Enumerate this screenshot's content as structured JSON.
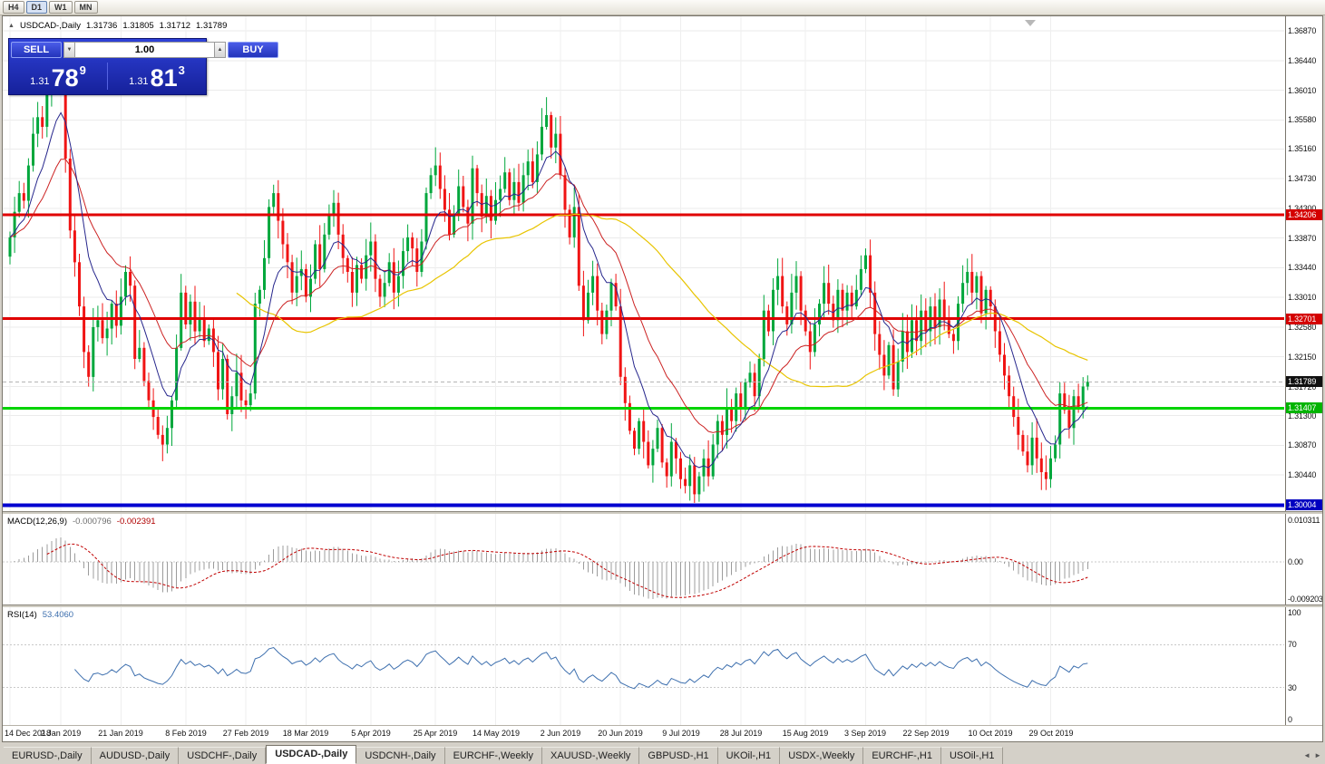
{
  "toolbar": {
    "buttons": [
      {
        "label": "H4",
        "active": false
      },
      {
        "label": "D1",
        "active": true
      },
      {
        "label": "W1",
        "active": false
      },
      {
        "label": "MN",
        "active": false
      }
    ]
  },
  "icons": {
    "title_marker": "▲",
    "volume_down": "▼",
    "volume_up": "▲",
    "tab_scroll_left": "◄",
    "tab_scroll_right": "►"
  },
  "chart": {
    "title": "USDCAD-,Daily",
    "ohlc": {
      "open": "1.31736",
      "high": "1.31805",
      "low": "1.31712",
      "close": "1.31789"
    },
    "trade_panel": {
      "sell_label": "SELL",
      "buy_label": "BUY",
      "volume": "1.00",
      "sell_price": {
        "small": "1.31",
        "big": "78",
        "sup": "9"
      },
      "buy_price": {
        "small": "1.31",
        "big": "81",
        "sup": "3"
      }
    }
  },
  "indicators": {
    "macd": {
      "name": "MACD(12,26,9)",
      "value_main": "-0.000796",
      "value_signal": "-0.002391",
      "axis": [
        "0.010311",
        "0.00",
        "-0.009203"
      ],
      "ylim": [
        -0.0105,
        0.0119
      ],
      "histogram_color": "#9c9c9c",
      "signal_color": "#c00000"
    },
    "rsi": {
      "name": "RSI(14)",
      "value": "53.4060",
      "axis": [
        "100",
        "70",
        "30",
        "0"
      ],
      "levels": [
        70,
        30
      ],
      "line_color": "#3d6fae"
    }
  },
  "chart_data": {
    "type": "candlestick",
    "symbol": "USDCAD",
    "timeframe": "Daily",
    "ylim": [
      1.29916,
      1.3708
    ],
    "colors": {
      "bull": "#00a73c",
      "bear": "#f01414"
    },
    "price_ticks": [
      "1.36870",
      "1.36440",
      "1.36010",
      "1.35580",
      "1.35160",
      "1.34730",
      "1.34300",
      "1.33870",
      "1.33440",
      "1.33010",
      "1.32580",
      "1.32150",
      "1.31720",
      "1.31300",
      "1.30870",
      "1.30440"
    ],
    "levels": [
      {
        "text": "1.34206",
        "value": 1.34206,
        "line": "#e00000",
        "bg": "#d40000",
        "thickness": 3,
        "dashed": false,
        "role": "resistance"
      },
      {
        "text": "1.32701",
        "value": 1.32701,
        "line": "#e00000",
        "bg": "#d40000",
        "thickness": 3,
        "dashed": false,
        "role": "resistance"
      },
      {
        "text": "1.31789",
        "value": 1.31789,
        "line": "#b4b4b4",
        "bg": "#101010",
        "thickness": 1,
        "dashed": true,
        "role": "current-price"
      },
      {
        "text": "1.31407",
        "value": 1.31407,
        "line": "#00d400",
        "bg": "#00b400",
        "thickness": 3,
        "dashed": false,
        "role": "support"
      },
      {
        "text": "1.30004",
        "value": 1.30004,
        "line": "#0000d0",
        "bg": "#0000c0",
        "thickness": 4,
        "dashed": false,
        "role": "support"
      }
    ],
    "moving_averages": [
      {
        "name": "fast",
        "period": 9,
        "color": "#26268c"
      },
      {
        "name": "medium",
        "period": 21,
        "color": "#cc2222"
      },
      {
        "name": "slow",
        "period": 50,
        "color": "#e8c400"
      }
    ],
    "first_open": 1.336,
    "closes": [
      1.3388,
      1.3425,
      1.3452,
      1.3441,
      1.3492,
      1.3538,
      1.3562,
      1.3548,
      1.3601,
      1.3633,
      1.3642,
      1.3616,
      1.3502,
      1.3398,
      1.3352,
      1.3288,
      1.3222,
      1.3186,
      1.3258,
      1.3268,
      1.3242,
      1.3256,
      1.3292,
      1.326,
      1.3302,
      1.3338,
      1.3318,
      1.3212,
      1.3228,
      1.318,
      1.3152,
      1.3128,
      1.3102,
      1.3088,
      1.3112,
      1.3152,
      1.3228,
      1.3308,
      1.3262,
      1.3295,
      1.3252,
      1.327,
      1.3238,
      1.3256,
      1.3222,
      1.3168,
      1.3212,
      1.3132,
      1.3158,
      1.3192,
      1.3152,
      1.3145,
      1.3162,
      1.3292,
      1.3312,
      1.3358,
      1.3432,
      1.3452,
      1.3412,
      1.3378,
      1.3352,
      1.3308,
      1.3332,
      1.3342,
      1.3302,
      1.3328,
      1.3378,
      1.3342,
      1.3392,
      1.3422,
      1.3438,
      1.3392,
      1.3358,
      1.3338,
      1.3308,
      1.3348,
      1.3328,
      1.3362,
      1.3382,
      1.3328,
      1.3302,
      1.3322,
      1.3352,
      1.3308,
      1.3332,
      1.3368,
      1.3388,
      1.3372,
      1.3338,
      1.3382,
      1.3452,
      1.3478,
      1.3492,
      1.3458,
      1.3428,
      1.3392,
      1.3422,
      1.3462,
      1.3432,
      1.3408,
      1.3488,
      1.3452,
      1.3418,
      1.3448,
      1.3412,
      1.3442,
      1.3458,
      1.3482,
      1.3442,
      1.3468,
      1.3438,
      1.3478,
      1.3498,
      1.3468,
      1.3508,
      1.3548,
      1.3565,
      1.3518,
      1.3538,
      1.3478,
      1.3428,
      1.3388,
      1.3432,
      1.3318,
      1.3268,
      1.3308,
      1.3332,
      1.3282,
      1.3248,
      1.3282,
      1.3322,
      1.3288,
      1.3186,
      1.3148,
      1.3108,
      1.3082,
      1.3122,
      1.3092,
      1.3058,
      1.3082,
      1.3112,
      1.3062,
      1.3042,
      1.3092,
      1.3068,
      1.3038,
      1.3028,
      1.3058,
      1.3016,
      1.3042,
      1.3068,
      1.3042,
      1.3088,
      1.3122,
      1.3102,
      1.3142,
      1.3122,
      1.3162,
      1.3142,
      1.3178,
      1.3192,
      1.3158,
      1.3212,
      1.3282,
      1.3252,
      1.3312,
      1.3332,
      1.3288,
      1.3262,
      1.3308,
      1.3332,
      1.3282,
      1.3252,
      1.3222,
      1.3262,
      1.3292,
      1.3322,
      1.3292,
      1.3268,
      1.3312,
      1.3282,
      1.3308,
      1.3288,
      1.3312,
      1.3342,
      1.3362,
      1.3308,
      1.3248,
      1.3218,
      1.3188,
      1.3232,
      1.3168,
      1.3208,
      1.3252,
      1.3222,
      1.3268,
      1.3238,
      1.3282,
      1.3252,
      1.3288,
      1.3258,
      1.3298,
      1.3268,
      1.3248,
      1.3238,
      1.3292,
      1.3322,
      1.3338,
      1.3308,
      1.3332,
      1.3278,
      1.3312,
      1.3288,
      1.3252,
      1.3218,
      1.3188,
      1.3158,
      1.3128,
      1.3102,
      1.3078,
      1.3058,
      1.3098,
      1.3068,
      1.3048,
      1.3038,
      1.3068,
      1.3088,
      1.3162,
      1.3138,
      1.3112,
      1.3158,
      1.3142,
      1.3172,
      1.3179
    ],
    "date_labels": [
      {
        "text": "14 Dec 2018",
        "i": 0
      },
      {
        "text": "2 Jan 2019",
        "i": 11
      },
      {
        "text": "21 Jan 2019",
        "i": 24
      },
      {
        "text": "8 Feb 2019",
        "i": 38
      },
      {
        "text": "27 Feb 2019",
        "i": 51
      },
      {
        "text": "18 Mar 2019",
        "i": 64
      },
      {
        "text": "5 Apr 2019",
        "i": 78
      },
      {
        "text": "25 Apr 2019",
        "i": 92
      },
      {
        "text": "14 May 2019",
        "i": 105
      },
      {
        "text": "2 Jun 2019",
        "i": 119
      },
      {
        "text": "20 Jun 2019",
        "i": 132
      },
      {
        "text": "9 Jul 2019",
        "i": 145
      },
      {
        "text": "28 Jul 2019",
        "i": 158
      },
      {
        "text": "15 Aug 2019",
        "i": 172
      },
      {
        "text": "3 Sep 2019",
        "i": 185
      },
      {
        "text": "22 Sep 2019",
        "i": 198
      },
      {
        "text": "10 Oct 2019",
        "i": 212
      },
      {
        "text": "29 Oct 2019",
        "i": 225
      }
    ]
  },
  "tabs": {
    "items": [
      {
        "label": "EURUSD-,Daily",
        "active": false
      },
      {
        "label": "AUDUSD-,Daily",
        "active": false
      },
      {
        "label": "USDCHF-,Daily",
        "active": false
      },
      {
        "label": "USDCAD-,Daily",
        "active": true
      },
      {
        "label": "USDCNH-,Daily",
        "active": false
      },
      {
        "label": "EURCHF-,Weekly",
        "active": false
      },
      {
        "label": "XAUUSD-,Weekly",
        "active": false
      },
      {
        "label": "GBPUSD-,H1",
        "active": false
      },
      {
        "label": "UKOil-,H1",
        "active": false
      },
      {
        "label": "USDX-,Weekly",
        "active": false
      },
      {
        "label": "EURCHF-,H1",
        "active": false
      },
      {
        "label": "USOil-,H1",
        "active": false
      }
    ]
  }
}
